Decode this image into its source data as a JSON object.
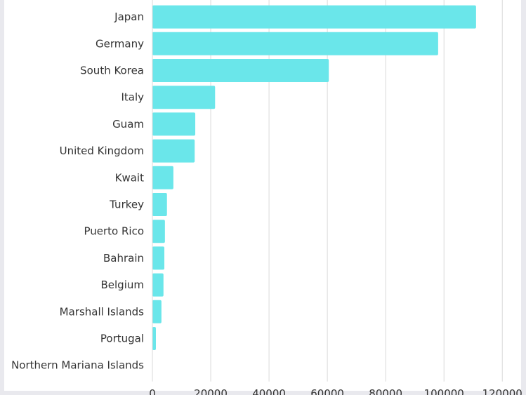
{
  "chart_data": {
    "type": "bar",
    "orientation": "horizontal",
    "title": "",
    "xlabel": "",
    "ylabel": "",
    "categories": [
      "Japan",
      "Germany",
      "South Korea",
      "Italy",
      "Guam",
      "United Kingdom",
      "Kwait",
      "Turkey",
      "Puerto Rico",
      "Bahrain",
      "Belgium",
      "Marshall Islands",
      "Portugal",
      "Northern Mariana Islands"
    ],
    "values": [
      111000,
      98000,
      60500,
      21500,
      14700,
      14500,
      7200,
      5000,
      4300,
      4100,
      3800,
      3100,
      1200,
      40
    ],
    "xlim": [
      0,
      125000
    ],
    "x_ticks": [
      "0",
      "20000",
      "40000",
      "60000",
      "80000",
      "100000",
      "120000"
    ],
    "grid": "vertical",
    "legend": "none",
    "bar_color": "#6ae6ea",
    "grid_color": "#d9d9d9"
  }
}
